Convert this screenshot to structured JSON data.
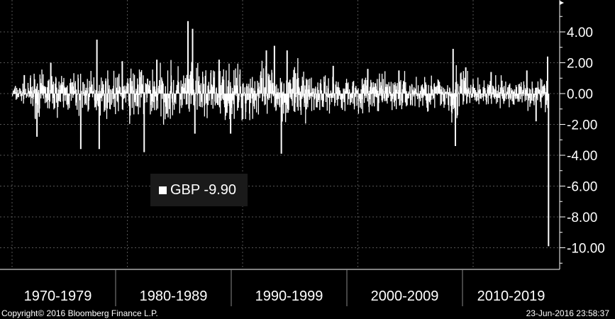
{
  "chart_data": {
    "type": "bar",
    "title": "",
    "xlabel": "",
    "ylabel": "",
    "ylim": [
      -11,
      6
    ],
    "yticks": [
      4,
      2,
      0,
      -2,
      -4,
      -6,
      -8,
      -10
    ],
    "ytick_labels": [
      "4.00",
      "2.00",
      "0.00",
      "-2.00",
      "-4.00",
      "-6.00",
      "-8.00",
      "-10.00"
    ],
    "categories": [
      "1970-1979",
      "1980-1989",
      "1990-1999",
      "2000-2009",
      "2010-2019"
    ],
    "grid": true,
    "legend_position": "center-left",
    "series": [
      {
        "name": "GBP",
        "color": "#ffffff",
        "last_value": -9.9,
        "last_value_label": "-9.90",
        "extremes": [
          {
            "year": 1971.0,
            "value": 1.2
          },
          {
            "year": 1972.1,
            "value": -2.8
          },
          {
            "year": 1973.3,
            "value": 2.0
          },
          {
            "year": 1975.9,
            "value": -3.6
          },
          {
            "year": 1977.3,
            "value": 3.5
          },
          {
            "year": 1977.5,
            "value": -3.6
          },
          {
            "year": 1979.5,
            "value": 2.1
          },
          {
            "year": 1981.4,
            "value": -3.8
          },
          {
            "year": 1982.5,
            "value": 2.2
          },
          {
            "year": 1985.2,
            "value": 4.7
          },
          {
            "year": 1985.6,
            "value": 4.2
          },
          {
            "year": 1985.8,
            "value": -2.6
          },
          {
            "year": 1987.9,
            "value": 2.2
          },
          {
            "year": 1988.9,
            "value": -2.6
          },
          {
            "year": 1992.0,
            "value": 2.8
          },
          {
            "year": 1992.7,
            "value": 3.1
          },
          {
            "year": 1993.3,
            "value": -3.9
          },
          {
            "year": 1993.8,
            "value": 2.8
          },
          {
            "year": 1997.8,
            "value": 1.8
          },
          {
            "year": 2000.8,
            "value": 1.6
          },
          {
            "year": 2003.5,
            "value": 1.5
          },
          {
            "year": 2008.2,
            "value": 2.9
          },
          {
            "year": 2008.4,
            "value": -3.4
          },
          {
            "year": 2009.3,
            "value": 1.7
          },
          {
            "year": 2011.5,
            "value": 1.4
          },
          {
            "year": 2014.6,
            "value": 1.5
          },
          {
            "year": 2015.4,
            "value": -1.8
          },
          {
            "year": 2016.4,
            "value": 2.4
          },
          {
            "year": 2016.48,
            "value": -9.9
          }
        ]
      }
    ]
  },
  "legend": {
    "label": "GBP -9.90"
  },
  "footer": {
    "copyright": "Copyright© 2016 Bloomberg Finance L.P.",
    "timestamp": "23-Jun-2016 23:58:37"
  }
}
